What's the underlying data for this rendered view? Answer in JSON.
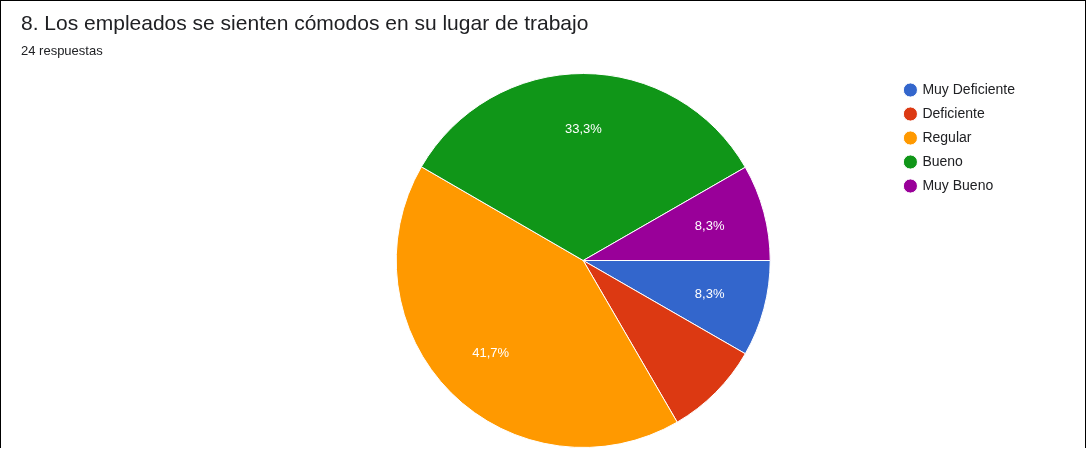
{
  "chart_data": {
    "type": "pie",
    "title": "8.  Los empleados se sienten cómodos en su lugar de trabajo",
    "subtitle": "24 respuestas",
    "categories": [
      "Muy Deficiente",
      "Deficiente",
      "Regular",
      "Bueno",
      "Muy Bueno"
    ],
    "values": [
      8.3,
      8.3,
      41.7,
      33.3,
      8.3
    ],
    "colors": [
      "#3366cc",
      "#dc3912",
      "#ff9900",
      "#109618",
      "#990099"
    ],
    "value_labels": [
      "8,3%",
      null,
      "41,7%",
      "33,3%",
      "8,3%"
    ],
    "legend": "top right"
  }
}
